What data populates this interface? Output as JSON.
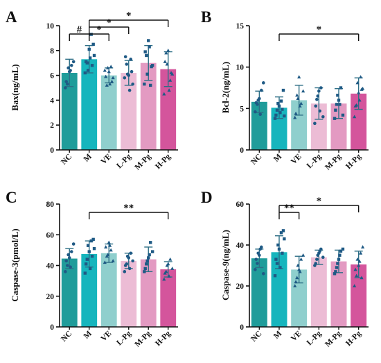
{
  "figure": {
    "colors": {
      "NC": "#1f9c9a",
      "M": "#16b5bd",
      "VE": "#8fcfcd",
      "L-Pg": "#ecbcd5",
      "M-Pg": "#e39ac2",
      "H-Pg": "#d4559c",
      "error": "#2e6f86",
      "dots": "#1f5a85",
      "axis": "#111111"
    }
  },
  "chart_data": [
    {
      "panel": "A",
      "type": "bar",
      "title": "",
      "ylabel": "Bax(ng/mL)",
      "ylim": [
        0,
        10
      ],
      "yticks": [
        "0",
        "2",
        "4",
        "6",
        "8",
        "10"
      ],
      "categories": [
        "NC",
        "M",
        "VE",
        "L-Pg",
        "M-Pg",
        "H-Pg"
      ],
      "values": [
        6.2,
        7.3,
        6.0,
        6.2,
        7.0,
        6.5
      ],
      "errors": [
        1.1,
        1.1,
        0.6,
        1.0,
        1.4,
        1.4
      ],
      "points": [
        [
          5.0,
          5.3,
          6.3,
          6.8,
          7.1,
          5.5,
          6.6,
          6.4
        ],
        [
          6.2,
          7.0,
          8.1,
          9.3,
          8.5,
          7.1,
          6.4,
          7.4,
          6.8,
          7.6
        ],
        [
          6.4,
          5.2,
          6.3,
          6.7,
          5.8,
          5.9,
          6.6,
          5.3,
          5.5
        ],
        [
          5.8,
          6.9,
          6.0,
          7.3,
          5.3,
          7.5,
          6.1,
          4.8,
          6.3
        ],
        [
          5.3,
          7.6,
          8.8,
          5.2,
          6.8,
          7.9,
          6.1,
          8.3,
          6.7
        ],
        [
          4.5,
          7.8,
          8.0,
          5.6,
          6.1,
          7.1,
          6.9,
          4.8,
          6.2
        ]
      ],
      "comparisons": [
        {
          "from": 0,
          "to": 1,
          "label": "#",
          "level": 1
        },
        {
          "from": 1,
          "to": 2,
          "label": "*",
          "level": 1
        },
        {
          "from": 1,
          "to": 3,
          "label": "*",
          "level": 2
        },
        {
          "from": 1,
          "to": 5,
          "label": "*",
          "level": 3
        }
      ]
    },
    {
      "panel": "B",
      "type": "bar",
      "title": "",
      "ylabel": "Bcl-2(ng/mL)",
      "ylim": [
        0,
        15
      ],
      "yticks": [
        "0",
        "5",
        "10",
        "15"
      ],
      "categories": [
        "NC",
        "M",
        "VE",
        "L-Pg",
        "M-Pg",
        "H-Pg"
      ],
      "values": [
        5.8,
        5.1,
        6.0,
        5.6,
        5.6,
        6.8
      ],
      "errors": [
        1.3,
        1.3,
        1.8,
        1.9,
        1.8,
        1.9
      ],
      "points": [
        [
          4.6,
          5.5,
          6.2,
          7.2,
          8.1,
          5.7,
          6.0,
          4.3
        ],
        [
          3.8,
          4.8,
          5.3,
          5.9,
          7.2,
          4.2,
          5.6,
          4.5,
          4.9,
          4.1
        ],
        [
          3.9,
          6.6,
          8.8,
          5.6,
          7.1,
          4.4,
          6.2,
          5.3
        ],
        [
          3.2,
          6.1,
          7.1,
          7.5,
          4.0,
          5.3,
          6.5,
          4.7
        ],
        [
          3.8,
          5.5,
          6.0,
          7.5,
          4.2,
          4.8,
          6.6,
          5.5
        ],
        [
          4.0,
          5.4,
          6.9,
          8.8,
          7.4,
          5.3,
          8.1,
          6.0,
          7.3
        ]
      ],
      "comparisons": [
        {
          "from": 1,
          "to": 5,
          "label": "*",
          "level": 1
        }
      ]
    },
    {
      "panel": "C",
      "type": "bar",
      "title": "",
      "ylabel": "Caspase-3(pmol/L)",
      "ylim": [
        0,
        80
      ],
      "yticks": [
        "0",
        "20",
        "40",
        "60",
        "80"
      ],
      "categories": [
        "NC",
        "M",
        "VE",
        "L-Pg",
        "M-Pg",
        "H-Pg"
      ],
      "values": [
        44.5,
        47.5,
        48.0,
        43.0,
        44.0,
        37.5
      ],
      "errors": [
        6.5,
        8.5,
        6.0,
        5.0,
        8.0,
        5.0
      ],
      "points": [
        [
          36,
          40,
          45,
          49,
          54,
          43,
          47,
          39
        ],
        [
          35,
          44,
          49,
          56,
          57,
          41,
          53,
          38,
          46,
          51
        ],
        [
          42,
          46,
          55,
          50,
          43,
          52,
          47,
          53
        ],
        [
          36,
          41,
          45,
          48,
          43,
          40,
          46,
          38
        ],
        [
          36,
          41,
          45,
          55,
          49,
          38,
          43,
          47
        ],
        [
          31,
          36,
          41,
          44,
          38,
          35,
          40,
          33
        ]
      ],
      "comparisons": [
        {
          "from": 1,
          "to": 5,
          "label": "**",
          "level": 1
        }
      ]
    },
    {
      "panel": "D",
      "type": "bar",
      "title": "",
      "ylabel": "Caspase-9(ng/mL)",
      "ylim": [
        0,
        60
      ],
      "yticks": [
        "0",
        "20",
        "40",
        "60"
      ],
      "categories": [
        "NC",
        "M",
        "VE",
        "L-Pg",
        "M-Pg",
        "H-Pg"
      ],
      "values": [
        33.5,
        36.5,
        28.0,
        34.0,
        32.0,
        30.5
      ],
      "errors": [
        4.5,
        8.0,
        6.5,
        3.5,
        5.5,
        6.5
      ],
      "points": [
        [
          28,
          31,
          35,
          39,
          26,
          33,
          36,
          38
        ],
        [
          25,
          31,
          38,
          46,
          47,
          33,
          40,
          29,
          36,
          43
        ],
        [
          20,
          24,
          28,
          33,
          35,
          22,
          30,
          27
        ],
        [
          30,
          33,
          36,
          38,
          34,
          31,
          35,
          37
        ],
        [
          26,
          29,
          33,
          37,
          38,
          27,
          31,
          35
        ],
        [
          20,
          25,
          30,
          36,
          39,
          28,
          33,
          32,
          24
        ]
      ],
      "comparisons": [
        {
          "from": 1,
          "to": 2,
          "label": "**",
          "level": 1
        },
        {
          "from": 1,
          "to": 5,
          "label": "*",
          "level": 2
        }
      ]
    }
  ]
}
